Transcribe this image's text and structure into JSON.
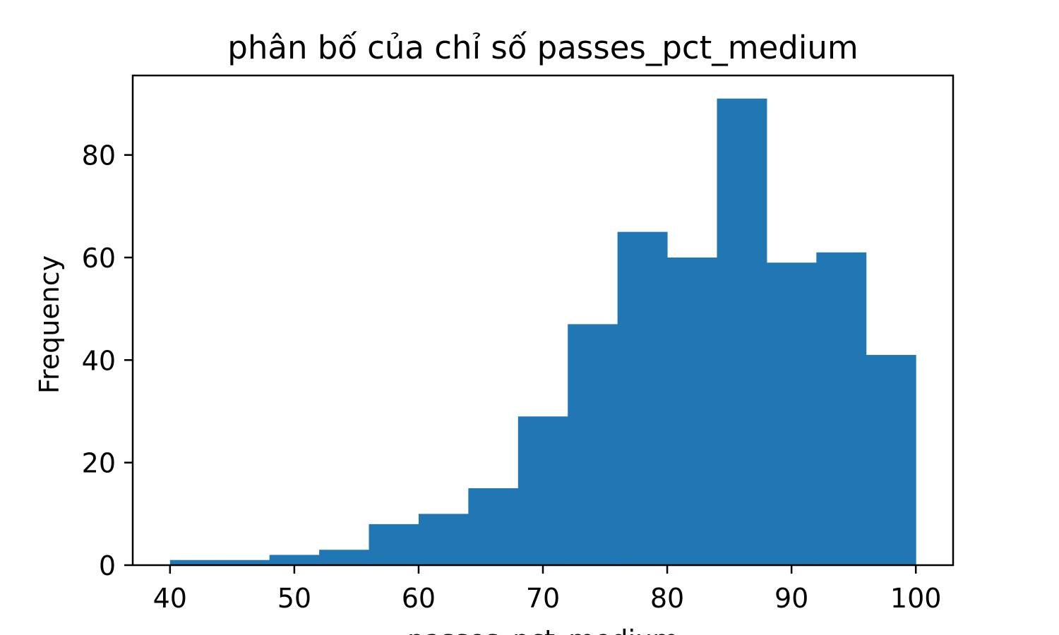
{
  "chart_data": {
    "type": "bar",
    "title": "phân bố của chỉ số passes_pct_medium",
    "xlabel": "passes_pct_medium",
    "ylabel": "Frequency",
    "bin_edges": [
      40,
      44,
      48,
      52,
      56,
      60,
      64,
      68,
      72,
      76,
      80,
      84,
      88,
      92,
      96,
      100
    ],
    "values": [
      1,
      1,
      2,
      3,
      8,
      10,
      15,
      29,
      47,
      65,
      60,
      91,
      59,
      61,
      41
    ],
    "xlim": [
      37,
      103
    ],
    "ylim": [
      0,
      95.5
    ],
    "x_ticks": [
      40,
      50,
      60,
      70,
      80,
      90,
      100
    ],
    "y_ticks": [
      0,
      20,
      40,
      60,
      80
    ],
    "bar_color": "#2077b4",
    "grid": false,
    "legend": "none"
  }
}
